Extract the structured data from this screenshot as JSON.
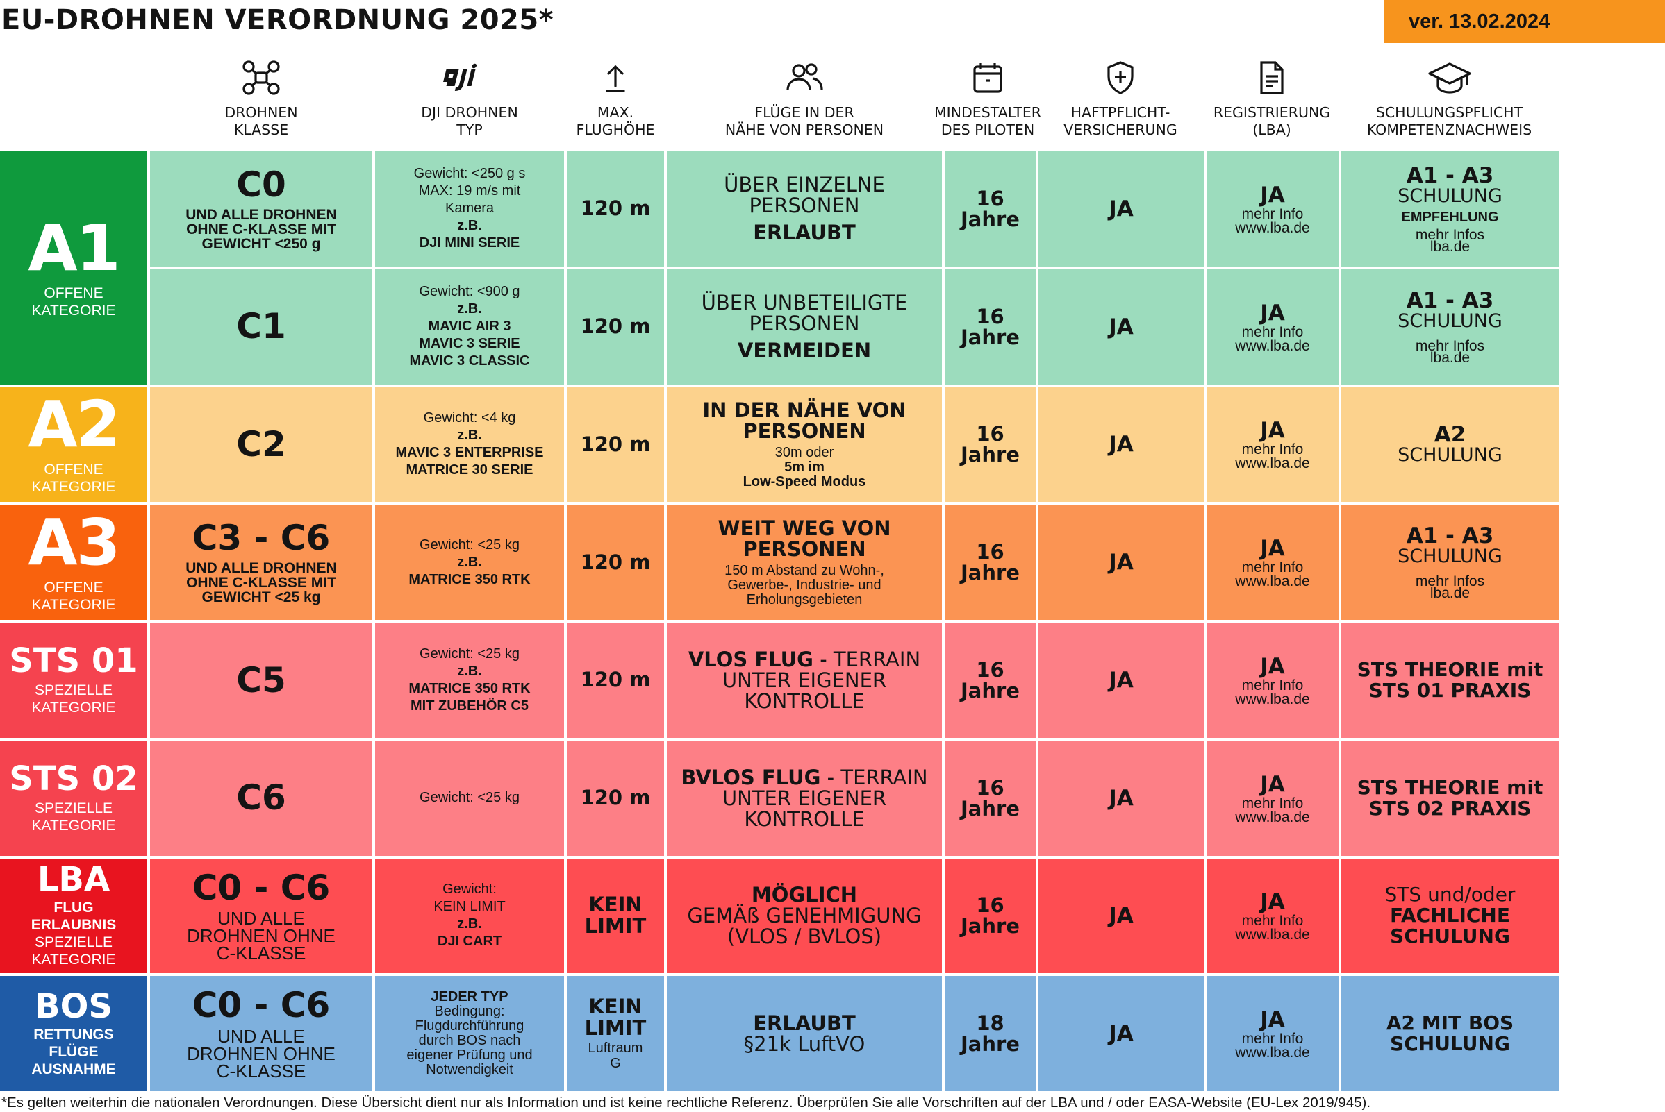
{
  "title": "EU-DROHNEN VERORDNUNG 2025*",
  "version": "ver. 13.02.2024",
  "colors": {
    "accent_orange": "#f7941d",
    "a1_category": "#0f9a3d",
    "a1_cells": "#9cdcbd",
    "a2_category": "#f7b31b",
    "a2_cells": "#fcd28d",
    "a3_category": "#f9620d",
    "a3_cells": "#fb9453",
    "sts01_category": "#f5434f",
    "sts01_cells": "#fd7f86",
    "sts02_category": "#f5434f",
    "sts02_cells": "#fd7f86",
    "lba_category": "#e8141f",
    "lba_cells": "#fe4d52",
    "bos_category": "#1f5ba6",
    "bos_cells": "#7eb0dd"
  },
  "headers": [
    {
      "icon": "drone-icon",
      "lines": [
        "DROHNEN",
        "KLASSE"
      ]
    },
    {
      "icon": "dji-logo-icon",
      "lines": [
        "DJI DROHNEN",
        "TYP"
      ]
    },
    {
      "icon": "arrow-up-icon",
      "lines": [
        "MAX.",
        "FLUGHÖHE"
      ]
    },
    {
      "icon": "people-icon",
      "lines": [
        "FLÜGE IN DER",
        "NÄHE VON PERSONEN"
      ]
    },
    {
      "icon": "calendar-icon",
      "lines": [
        "MINDESTALTER",
        "DES PILOTEN"
      ]
    },
    {
      "icon": "shield-icon",
      "lines": [
        "HAFTPFLICHT-",
        "VERSICHERUNG"
      ]
    },
    {
      "icon": "document-icon",
      "lines": [
        "REGISTRIERUNG",
        "(LBA)"
      ]
    },
    {
      "icon": "graduation-cap-icon",
      "lines": [
        "SCHULUNGSPFLICHT",
        "KOMPETENZNACHWEIS"
      ]
    }
  ],
  "categories": [
    {
      "name": "A1",
      "sub": [
        "OFFENE",
        "KATEGORIE"
      ]
    },
    {
      "name": "A2",
      "sub": [
        "OFFENE",
        "KATEGORIE"
      ]
    },
    {
      "name": "A3",
      "sub": [
        "OFFENE",
        "KATEGORIE"
      ]
    },
    {
      "name": "STS 01",
      "sub": [
        "SPEZIELLE",
        "KATEGORIE"
      ]
    },
    {
      "name": "STS 02",
      "sub": [
        "SPEZIELLE",
        "KATEGORIE"
      ]
    },
    {
      "name": "LBA",
      "sub_bold": [
        "FLUG",
        "ERLAUBNIS"
      ],
      "sub": [
        "SPEZIELLE",
        "KATEGORIE"
      ]
    },
    {
      "name": "BOS",
      "sub_bold": [
        "RETTUNGS",
        "FLÜGE",
        "AUSNAHME"
      ]
    }
  ],
  "rows": [
    {
      "class": "C0",
      "class_sub": [
        "UND ALLE DROHNEN",
        "OHNE C-KLASSE MIT",
        "GEWICHT <250 g"
      ],
      "type": [
        [
          "Gewicht: <250 g s",
          "normal"
        ],
        [
          "MAX: 19 m/s mit",
          "normal"
        ],
        [
          "Kamera",
          "normal"
        ],
        [
          "z.B.",
          "bold"
        ],
        [
          "DJI MINI SERIE",
          "bold"
        ]
      ],
      "altitude": [
        "120 m"
      ],
      "flight_a": [
        "ÜBER EINZELNE",
        "PERSONEN"
      ],
      "flight_b": [
        "ERLAUBT"
      ],
      "age": [
        "16",
        "Jahre"
      ],
      "insurance": "JA",
      "reg": "JA",
      "reg_info": [
        "mehr Info",
        "www.lba.de"
      ],
      "edu_a": "A1 - A3",
      "edu_b": "SCHULUNG",
      "edu_c": "EMPFEHLUNG",
      "edu_d": [
        "mehr Infos",
        "lba.de"
      ]
    },
    {
      "class": "C1",
      "type": [
        [
          "Gewicht: <900 g",
          "normal"
        ],
        [
          "z.B.",
          "bold"
        ],
        [
          "MAVIC AIR 3",
          "bold"
        ],
        [
          "MAVIC 3 SERIE",
          "bold"
        ],
        [
          "MAVIC 3 CLASSIC",
          "bold"
        ]
      ],
      "altitude": [
        "120 m"
      ],
      "flight_a": [
        "ÜBER UNBETEILIGTE",
        "PERSONEN"
      ],
      "flight_b": [
        "VERMEIDEN"
      ],
      "age": [
        "16",
        "Jahre"
      ],
      "insurance": "JA",
      "reg": "JA",
      "reg_info": [
        "mehr Info",
        "www.lba.de"
      ],
      "edu_a": "A1 - A3",
      "edu_b": "SCHULUNG",
      "edu_d": [
        "mehr Infos",
        "lba.de"
      ]
    },
    {
      "class": "C2",
      "type": [
        [
          "Gewicht: <4 kg",
          "normal"
        ],
        [
          "z.B.",
          "bold"
        ],
        [
          "MAVIC 3 ENTERPRISE",
          "bold"
        ],
        [
          "MATRICE 30 SERIE",
          "bold"
        ]
      ],
      "altitude": [
        "120 m"
      ],
      "flight_a_bold": [
        "IN DER NÄHE VON",
        "PERSONEN"
      ],
      "flight_small": [
        [
          "30m oder",
          "normal"
        ],
        [
          "5m im",
          "bold"
        ],
        [
          "Low-Speed Modus",
          "bold"
        ]
      ],
      "age": [
        "16",
        "Jahre"
      ],
      "insurance": "JA",
      "reg": "JA",
      "reg_info": [
        "mehr Info",
        "www.lba.de"
      ],
      "edu_a": "A2",
      "edu_b": "SCHULUNG"
    },
    {
      "class": "C3 - C6",
      "class_sub": [
        "UND ALLE DROHNEN",
        "OHNE C-KLASSE MIT",
        "GEWICHT <25 kg"
      ],
      "type": [
        [
          "Gewicht: <25 kg",
          "normal"
        ],
        [
          "z.B.",
          "bold"
        ],
        [
          "MATRICE 350 RTK",
          "bold"
        ]
      ],
      "altitude": [
        "120 m"
      ],
      "flight_a_bold": [
        "WEIT WEG VON",
        "PERSONEN"
      ],
      "flight_small": [
        [
          "150 m Abstand zu Wohn-,",
          "normal"
        ],
        [
          "Gewerbe-, Industrie- und",
          "normal"
        ],
        [
          "Erholungsgebieten",
          "normal"
        ]
      ],
      "age": [
        "16",
        "Jahre"
      ],
      "insurance": "JA",
      "reg": "JA",
      "reg_info": [
        "mehr Info",
        "www.lba.de"
      ],
      "edu_a": "A1 - A3",
      "edu_b": "SCHULUNG",
      "edu_d": [
        "mehr Infos",
        "lba.de"
      ]
    },
    {
      "class": "C5",
      "type": [
        [
          "Gewicht: <25 kg",
          "normal"
        ],
        [
          "z.B.",
          "bold"
        ],
        [
          "MATRICE 350 RTK",
          "bold"
        ],
        [
          "MIT ZUBEHÖR C5",
          "bold"
        ]
      ],
      "altitude": [
        "120 m"
      ],
      "flight_lead": "VLOS FLUG",
      "flight_rest": [
        " - TERRAIN",
        "UNTER EIGENER",
        "KONTROLLE"
      ],
      "age": [
        "16",
        "Jahre"
      ],
      "insurance": "JA",
      "reg": "JA",
      "reg_info": [
        "mehr Info",
        "www.lba.de"
      ],
      "edu_big": [
        "STS THEORIE mit",
        "STS 01 PRAXIS"
      ]
    },
    {
      "class": "C6",
      "type": [
        [
          "Gewicht: <25 kg",
          "normal"
        ]
      ],
      "altitude": [
        "120 m"
      ],
      "flight_lead": "BVLOS FLUG",
      "flight_rest": [
        " - TERRAIN",
        "UNTER EIGENER",
        "KONTROLLE"
      ],
      "age": [
        "16",
        "Jahre"
      ],
      "insurance": "JA",
      "reg": "JA",
      "reg_info": [
        "mehr Info",
        "www.lba.de"
      ],
      "edu_big": [
        "STS THEORIE mit",
        "STS 02 PRAXIS"
      ]
    },
    {
      "class": "C0 - C6",
      "class_sub_reg": [
        "UND ALLE",
        "DROHNEN OHNE",
        "C-KLASSE"
      ],
      "type": [
        [
          "Gewicht:",
          "normal"
        ],
        [
          "KEIN LIMIT",
          "normal"
        ],
        [
          "z.B.",
          "bold"
        ],
        [
          "DJI CART",
          "bold"
        ]
      ],
      "altitude": [
        "KEIN",
        "LIMIT"
      ],
      "flight_a_bold": [
        "MÖGLICH"
      ],
      "flight_a": [
        "GEMÄß GENEHMIGUNG",
        "(VLOS / BVLOS)"
      ],
      "age": [
        "16",
        "Jahre"
      ],
      "insurance": "JA",
      "reg": "JA",
      "reg_info": [
        "mehr Info",
        "www.lba.de"
      ],
      "edu_big_reg": [
        "STS und/oder"
      ],
      "edu_big": [
        "FACHLICHE",
        "SCHULUNG"
      ]
    },
    {
      "class": "C0 - C6",
      "class_sub_reg": [
        "UND ALLE",
        "DROHNEN OHNE",
        "C-KLASSE"
      ],
      "type": [
        [
          "JEDER TYP",
          "bold"
        ],
        [
          "Bedingung:",
          "normal"
        ],
        [
          "Flugdurchführung",
          "normal"
        ],
        [
          "durch BOS nach",
          "normal"
        ],
        [
          "eigener Prüfung und",
          "normal"
        ],
        [
          "Notwendigkeit",
          "normal"
        ]
      ],
      "altitude": [
        "KEIN",
        "LIMIT"
      ],
      "altitude_sub": [
        "Luftraum",
        "G"
      ],
      "flight_a_bold": [
        "ERLAUBT"
      ],
      "flight_a": [
        "§21k LuftVO"
      ],
      "age": [
        "18",
        "Jahre"
      ],
      "insurance": "JA",
      "reg": "JA",
      "reg_info": [
        "mehr Info",
        "www.lba.de"
      ],
      "edu_big": [
        "A2 MIT BOS",
        "SCHULUNG"
      ]
    }
  ],
  "footnote": "*Es gelten weiterhin die nationalen Verordnungen. Diese Übersicht dient nur als Information und ist keine rechtliche Referenz. Überprüfen Sie alle Vorschriften auf der LBA und / oder EASA-Website (EU-Lex 2019/945)."
}
